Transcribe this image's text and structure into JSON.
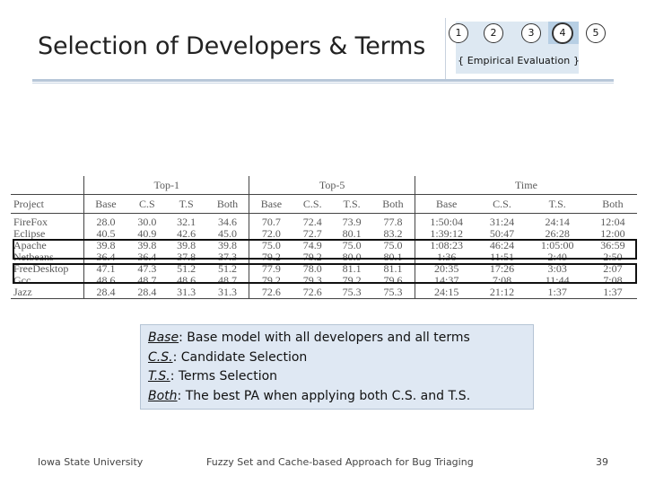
{
  "slide": {
    "title": "Selection of Developers & Terms",
    "steps": [
      "1",
      "2",
      "3",
      "4",
      "5"
    ],
    "active_step": "4",
    "stage_label": "{ Empirical Evaluation }"
  },
  "table": {
    "groups": [
      "",
      "Top-1",
      "Top-5",
      "Time"
    ],
    "columns": [
      "Project",
      "Base",
      "C.S",
      "T.S",
      "Both",
      "Base",
      "C.S.",
      "T.S.",
      "Both",
      "Base",
      "C.S.",
      "T.S.",
      "Both"
    ],
    "rows": [
      [
        "FireFox",
        "28.0",
        "30.0",
        "32.1",
        "34.6",
        "70.7",
        "72.4",
        "73.9",
        "77.8",
        "1:50:04",
        "31:24",
        "24:14",
        "12:04"
      ],
      [
        "Eclipse",
        "40.5",
        "40.9",
        "42.6",
        "45.0",
        "72.0",
        "72.7",
        "80.1",
        "83.2",
        "1:39:12",
        "50:47",
        "26:28",
        "12:00"
      ],
      [
        "Apache",
        "39.8",
        "39.8",
        "39.8",
        "39.8",
        "75.0",
        "74.9",
        "75.0",
        "75.0",
        "1:08:23",
        "46:24",
        "1:05:00",
        "36:59"
      ],
      [
        "Netbeans",
        "36.4",
        "36.4",
        "37.8",
        "37.3",
        "79.2",
        "79.2",
        "80.0",
        "80.1",
        "1:36",
        "11:51",
        "2:40",
        "2:50"
      ],
      [
        "FreeDesktop",
        "47.1",
        "47.3",
        "51.2",
        "51.2",
        "77.9",
        "78.0",
        "81.1",
        "81.1",
        "20:35",
        "17:26",
        "3:03",
        "2:07"
      ],
      [
        "Gcc",
        "48.6",
        "48.7",
        "48.6",
        "48.7",
        "79.2",
        "79.3",
        "79.2",
        "79.6",
        "14:37",
        "7:08",
        "11:44",
        "7:08"
      ],
      [
        "Jazz",
        "28.4",
        "28.4",
        "31.3",
        "31.3",
        "72.6",
        "72.6",
        "75.3",
        "75.3",
        "24:15",
        "21:12",
        "1:37",
        "1:37"
      ]
    ]
  },
  "legend": [
    {
      "term": "Base",
      "text": ": Base model with all developers and all terms"
    },
    {
      "term": "C.S.",
      "text": ": Candidate Selection"
    },
    {
      "term": "T.S.",
      "text": ": Terms Selection"
    },
    {
      "term": "Both",
      "text": ": The best PA when applying both C.S. and T.S."
    }
  ],
  "footer": {
    "left": "Iowa State University",
    "center": "Fuzzy Set and Cache-based Approach for Bug Triaging",
    "page": "39"
  }
}
